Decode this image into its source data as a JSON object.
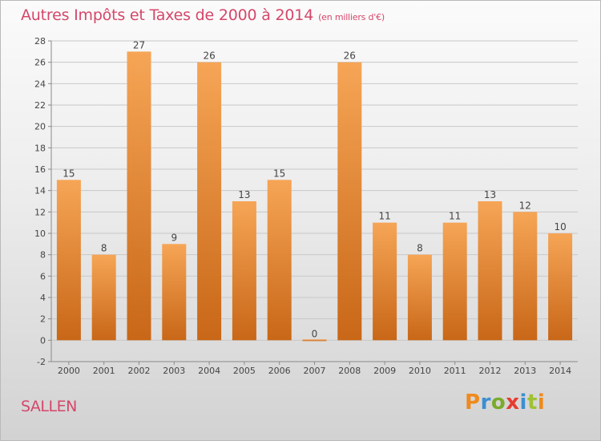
{
  "header": {
    "title": "Autres Impôts et Taxes de 2000 à 2014",
    "subtitle": "(en milliers d'€)"
  },
  "footer": {
    "place": "SALLEN",
    "brand": "Proxiti"
  },
  "colors": {
    "title": "#d5476a",
    "bar_light": "#f6a556",
    "bar_dark": "#c86717",
    "axis": "#8a8a8a",
    "grid": "#c8c8c8"
  },
  "chart_data": {
    "type": "bar",
    "categories": [
      "2000",
      "2001",
      "2002",
      "2003",
      "2004",
      "2005",
      "2006",
      "2007",
      "2008",
      "2009",
      "2010",
      "2011",
      "2012",
      "2013",
      "2014"
    ],
    "values": [
      15,
      8,
      27,
      9,
      26,
      13,
      15,
      0,
      26,
      11,
      8,
      11,
      13,
      12,
      10
    ],
    "ylim": [
      -2,
      28
    ],
    "yticks": [
      -2,
      0,
      2,
      4,
      6,
      8,
      10,
      12,
      14,
      16,
      18,
      20,
      22,
      24,
      26,
      28
    ],
    "grid": true
  }
}
